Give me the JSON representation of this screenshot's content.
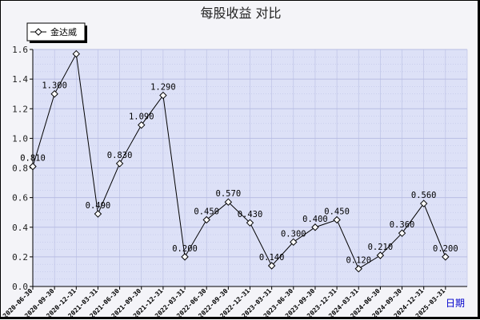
{
  "colors": {
    "plot_background": "#dde1f7",
    "grid": "#b8bde3",
    "line": "#000000",
    "marker_fill": "#ffffff",
    "xaxis_name": "#0000cc"
  },
  "chart_data": {
    "type": "line",
    "title": "每股收益  对比",
    "xlabel": "日期",
    "ylabel": "",
    "ylim": [
      0,
      1.6
    ],
    "y_ticks": [
      "0.0",
      "0.2",
      "0.4",
      "0.6",
      "0.8",
      "1.0",
      "1.2",
      "1.4",
      "1.6"
    ],
    "grid": true,
    "legend_position": "top-left",
    "x": [
      "2020-06-30",
      "2020-09-30",
      "2020-12-31",
      "2021-03-31",
      "2021-06-30",
      "2021-09-30",
      "2021-12-31",
      "2022-03-31",
      "2022-06-30",
      "2022-09-30",
      "2022-12-31",
      "2023-03-31",
      "2023-06-30",
      "2023-09-30",
      "2023-12-31",
      "2024-03-31",
      "2024-06-30",
      "2024-09-30",
      "2024-12-31",
      "2025-03-31"
    ],
    "series": [
      {
        "name": "金达威",
        "values": [
          0.81,
          1.3,
          1.57,
          0.49,
          0.83,
          1.09,
          1.29,
          0.2,
          0.45,
          0.57,
          0.43,
          0.14,
          0.3,
          0.4,
          0.45,
          0.12,
          0.21,
          0.36,
          0.56,
          0.2
        ],
        "labels": [
          "0.810",
          "1.300",
          "",
          "0.490",
          "0.830",
          "1.090",
          "1.290",
          "0.200",
          "0.450",
          "0.570",
          "0.430",
          "0.140",
          "0.300",
          "0.400",
          "0.450",
          "0.120",
          "0.210",
          "0.360",
          "0.560",
          "0.200"
        ]
      }
    ]
  }
}
